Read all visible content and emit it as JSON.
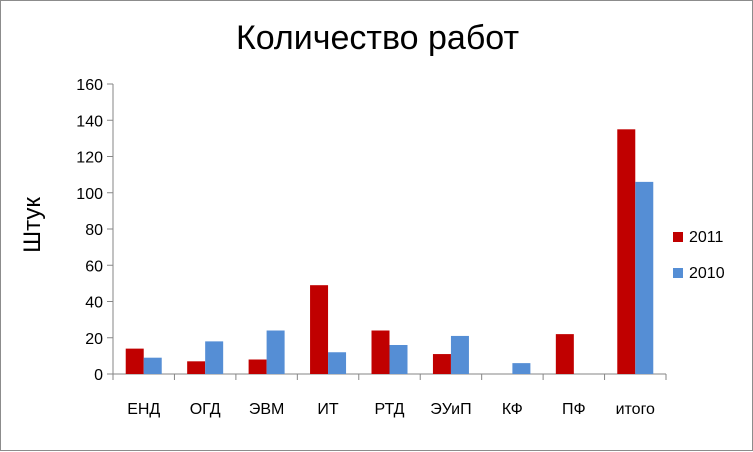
{
  "chart_data": {
    "type": "bar",
    "title": "Количество работ",
    "xlabel": "",
    "ylabel": "Штук",
    "categories": [
      "ЕНД",
      "ОГД",
      "ЭВМ",
      "ИТ",
      "РТД",
      "ЭУиП",
      "КФ",
      "ПФ",
      "итого"
    ],
    "series": [
      {
        "name": "2011",
        "color": "#c00000",
        "values": [
          14,
          7,
          8,
          49,
          24,
          11,
          0,
          22,
          135
        ]
      },
      {
        "name": "2010",
        "color": "#558ed5",
        "values": [
          9,
          18,
          24,
          12,
          16,
          21,
          6,
          0,
          106
        ]
      }
    ],
    "ylim": [
      0,
      160
    ],
    "yticks": [
      0,
      20,
      40,
      60,
      80,
      100,
      120,
      140,
      160
    ],
    "grid": false,
    "legend_position": "right"
  }
}
